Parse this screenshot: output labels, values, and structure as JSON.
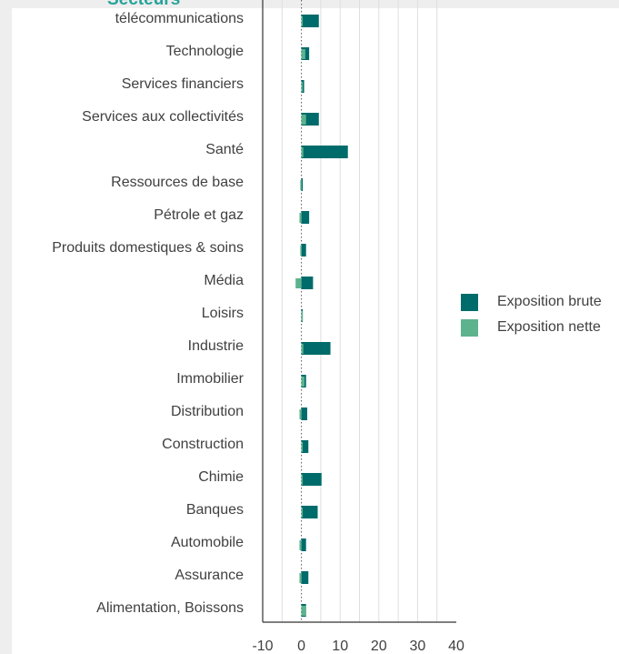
{
  "panel": {
    "title": "Secteurs"
  },
  "chart_data": {
    "type": "bar",
    "orientation": "horizontal",
    "categories": [
      "télécommunications",
      "Technologie",
      "Services financiers",
      "Services aux collectivités",
      "Santé",
      "Ressources de base",
      "Pétrole et gaz",
      "Produits domestiques & soins",
      "Média",
      "Loisirs",
      "Industrie",
      "Immobilier",
      "Distribution",
      "Construction",
      "Chimie",
      "Banques",
      "Automobile",
      "Assurance",
      "Alimentation, Boissons"
    ],
    "series": [
      {
        "name": "Exposition brute",
        "color": "#006b6b",
        "values": [
          4.5,
          2.0,
          0.7,
          4.5,
          12.0,
          0.2,
          2.0,
          1.2,
          3.0,
          0.3,
          7.5,
          1.2,
          1.5,
          1.8,
          5.2,
          4.2,
          1.2,
          1.8,
          1.2
        ]
      },
      {
        "name": "Exposition nette",
        "color": "#5db38e",
        "values": [
          0.3,
          1.0,
          0.3,
          1.2,
          0.5,
          -0.3,
          -0.5,
          -0.3,
          -1.5,
          0.3,
          0.5,
          0.8,
          -0.5,
          0.2,
          0.3,
          0.3,
          -0.5,
          -0.5,
          1.2
        ]
      }
    ],
    "xlim": [
      -10,
      40
    ],
    "xticks": [
      -10,
      0,
      10,
      20,
      30,
      40
    ],
    "grid": "vertical",
    "zero_line": "dotted",
    "legend_position": "right",
    "title": "",
    "xlabel": "",
    "ylabel": ""
  }
}
